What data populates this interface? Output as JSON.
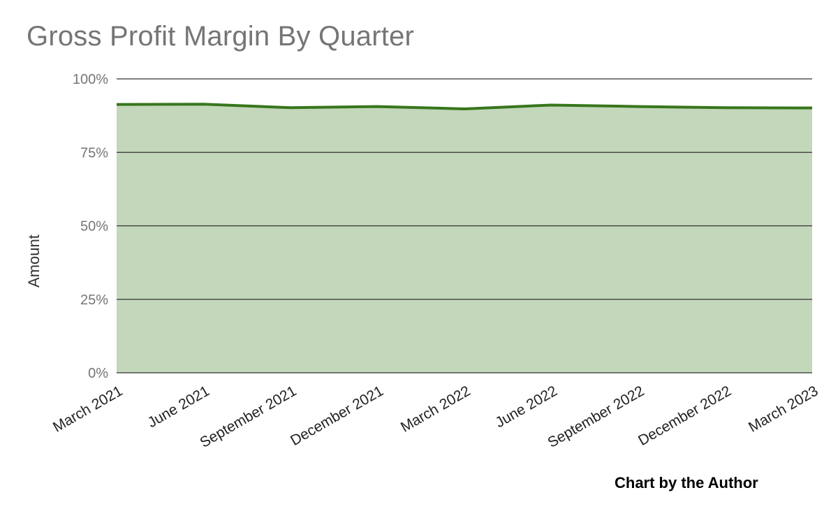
{
  "chart_data": {
    "type": "area",
    "title": "Gross Profit Margin By Quarter",
    "xlabel": "",
    "ylabel": "Amount",
    "categories": [
      "March 2021",
      "June 2021",
      "September 2021",
      "December 2021",
      "March 2022",
      "June 2022",
      "September 2022",
      "December 2022",
      "March 2023"
    ],
    "series": [
      {
        "values": [
          91.3,
          91.4,
          90.2,
          90.6,
          89.8,
          91.1,
          90.6,
          90.2,
          90.1
        ]
      }
    ],
    "ylim": [
      0,
      100
    ],
    "yticks": [
      0,
      25,
      50,
      75,
      100
    ],
    "ytick_labels": [
      "0%",
      "25%",
      "50%",
      "75%",
      "100%"
    ],
    "grid": true,
    "legend": "none",
    "colors": {
      "line": "#38761d",
      "fill": "#c3d7bb",
      "grid": "#333333"
    }
  },
  "credit": "Chart by the Author"
}
